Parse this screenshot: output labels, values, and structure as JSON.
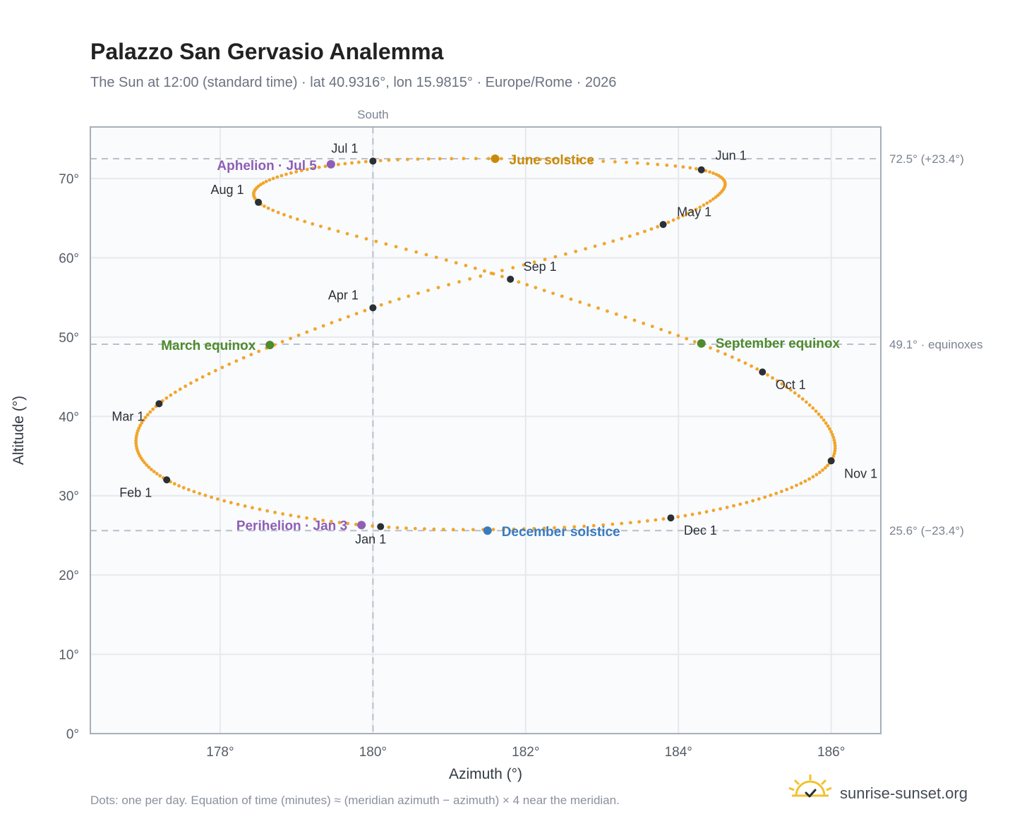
{
  "chart_data": {
    "type": "scatter",
    "title": "Palazzo San Gervasio Analemma",
    "subtitle": "The Sun at 12:00 (standard time) · lat 40.9316°, lon 15.9815° · Europe/Rome · 2026",
    "xlabel": "Azimuth (°)",
    "ylabel": "Altitude (°)",
    "xlim": [
      176.3,
      186.65
    ],
    "ylim": [
      0,
      76.5
    ],
    "x_ticks": [
      178,
      180,
      182,
      184,
      186
    ],
    "x_tick_labels": [
      "178°",
      "180°",
      "182°",
      "184°",
      "186°"
    ],
    "y_ticks": [
      0,
      10,
      20,
      30,
      40,
      50,
      60,
      70
    ],
    "y_tick_labels": [
      "0°",
      "10°",
      "20°",
      "30°",
      "40°",
      "50°",
      "60°",
      "70°"
    ],
    "grid": true,
    "meridian": {
      "x": 180,
      "label": "South"
    },
    "reference_lines": [
      {
        "y": 72.5,
        "label": "72.5° (+23.4°)"
      },
      {
        "y": 49.1,
        "label": "49.1° · equinoxes"
      },
      {
        "y": 25.6,
        "label": "25.6° (−23.4°)"
      }
    ],
    "month_markers": [
      {
        "label": "Jan 1",
        "x": 180.1,
        "y": 26.1
      },
      {
        "label": "Feb 1",
        "x": 177.3,
        "y": 32.0
      },
      {
        "label": "Mar 1",
        "x": 177.2,
        "y": 41.6
      },
      {
        "label": "Apr 1",
        "x": 180.0,
        "y": 53.7
      },
      {
        "label": "May 1",
        "x": 183.8,
        "y": 64.2
      },
      {
        "label": "Jun 1",
        "x": 184.3,
        "y": 71.1
      },
      {
        "label": "Jul 1",
        "x": 180.0,
        "y": 72.2
      },
      {
        "label": "Aug 1",
        "x": 178.5,
        "y": 67.0
      },
      {
        "label": "Sep 1",
        "x": 181.8,
        "y": 57.3
      },
      {
        "label": "Oct 1",
        "x": 185.1,
        "y": 45.6
      },
      {
        "label": "Nov 1",
        "x": 186.0,
        "y": 34.4
      },
      {
        "label": "Dec 1",
        "x": 183.9,
        "y": 27.2
      }
    ],
    "events": [
      {
        "label": "Perihelion · Jan 3",
        "x": 179.85,
        "y": 26.3,
        "color": "#8e5fb5"
      },
      {
        "label": "March equinox",
        "x": 178.65,
        "y": 49.0,
        "color": "#4f8a2d"
      },
      {
        "label": "June solstice",
        "x": 181.6,
        "y": 72.5,
        "color": "#c98a0c"
      },
      {
        "label": "Aphelion · Jul 5",
        "x": 179.45,
        "y": 71.8,
        "color": "#8e5fb5"
      },
      {
        "label": "September equinox",
        "x": 184.3,
        "y": 49.2,
        "color": "#4f8a2d"
      },
      {
        "label": "December solstice",
        "x": 181.5,
        "y": 25.6,
        "color": "#3a7bbf"
      }
    ],
    "colors": {
      "path": "#f2a52a",
      "marker": "#2b2f36",
      "grid": "#e6e9ee",
      "frame": "#a7afba",
      "plot_bg": "#f9fbfd",
      "ref_line": "#b9c0c9"
    }
  },
  "footnote": "Dots: one per day. Equation of time (minutes) ≈ (meridian azimuth − azimuth) × 4 near the meridian.",
  "brand": {
    "name": "sunrise-sunset.org",
    "icon": "sun-check-icon",
    "color": "#f2c12e"
  }
}
